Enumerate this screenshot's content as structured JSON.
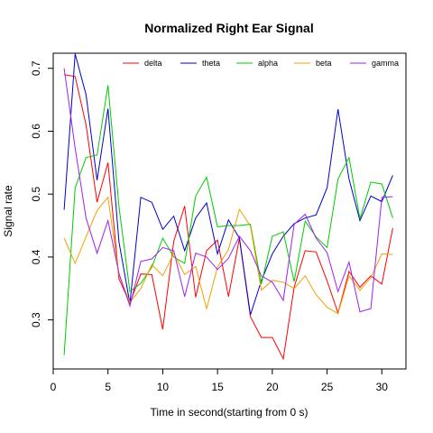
{
  "chart_data": {
    "type": "line",
    "title": "Normalized Right Ear Signal",
    "xlabel": "Time in second(starting from 0 s)",
    "ylabel": "Signal rate",
    "xlim": [
      0,
      32.2
    ],
    "ylim": [
      0.222,
      0.724
    ],
    "x_ticks": [
      0,
      5,
      10,
      15,
      20,
      25,
      30
    ],
    "y_ticks": [
      0.3,
      0.4,
      0.5,
      0.6,
      0.7
    ],
    "grid": false,
    "legend_position": "top",
    "x": [
      1,
      2,
      3,
      4,
      5,
      6,
      7,
      8,
      9,
      10,
      11,
      12,
      13,
      14,
      15,
      16,
      17,
      18,
      19,
      20,
      21,
      22,
      23,
      24,
      25,
      26,
      27,
      28,
      29,
      30,
      31
    ],
    "series": [
      {
        "name": "delta",
        "color": "#ff0000",
        "values": [
          0.69,
          0.687,
          0.61,
          0.487,
          0.55,
          0.365,
          0.327,
          0.373,
          0.372,
          0.285,
          0.425,
          0.481,
          0.336,
          0.41,
          0.427,
          0.337,
          0.43,
          0.305,
          0.272,
          0.272,
          0.238,
          0.352,
          0.41,
          0.408,
          0.362,
          0.311,
          0.377,
          0.352,
          0.37,
          0.357,
          0.446
        ]
      },
      {
        "name": "theta",
        "color": "#0000cc",
        "values": [
          0.475,
          0.723,
          0.658,
          0.522,
          0.636,
          0.424,
          0.326,
          0.495,
          0.487,
          0.444,
          0.465,
          0.41,
          0.462,
          0.486,
          0.405,
          0.459,
          0.43,
          0.308,
          0.362,
          0.405,
          0.433,
          0.453,
          0.462,
          0.467,
          0.51,
          0.635,
          0.524,
          0.458,
          0.497,
          0.488,
          0.53
        ]
      },
      {
        "name": "alpha",
        "color": "#00cc00",
        "values": [
          0.244,
          0.51,
          0.558,
          0.562,
          0.673,
          0.48,
          0.345,
          0.358,
          0.384,
          0.43,
          0.4,
          0.39,
          0.497,
          0.527,
          0.448,
          0.45,
          0.45,
          0.452,
          0.357,
          0.433,
          0.44,
          0.361,
          0.457,
          0.432,
          0.415,
          0.524,
          0.558,
          0.461,
          0.519,
          0.516,
          0.462
        ]
      },
      {
        "name": "beta",
        "color": "#f0a000",
        "values": [
          0.43,
          0.39,
          0.432,
          0.474,
          0.495,
          0.371,
          0.328,
          0.35,
          0.388,
          0.37,
          0.406,
          0.372,
          0.385,
          0.318,
          0.384,
          0.412,
          0.476,
          0.449,
          0.347,
          0.363,
          0.36,
          0.35,
          0.37,
          0.34,
          0.32,
          0.31,
          0.37,
          0.347,
          0.367,
          0.405,
          0.404
        ]
      },
      {
        "name": "gamma",
        "color": "#a020f0",
        "values": [
          0.7,
          0.573,
          0.462,
          0.406,
          0.458,
          0.374,
          0.322,
          0.393,
          0.397,
          0.415,
          0.41,
          0.337,
          0.406,
          0.4,
          0.38,
          0.398,
          0.433,
          0.41,
          0.37,
          0.36,
          0.331,
          0.452,
          0.468,
          0.43,
          0.407,
          0.345,
          0.392,
          0.313,
          0.318,
          0.495,
          0.496
        ]
      }
    ]
  }
}
